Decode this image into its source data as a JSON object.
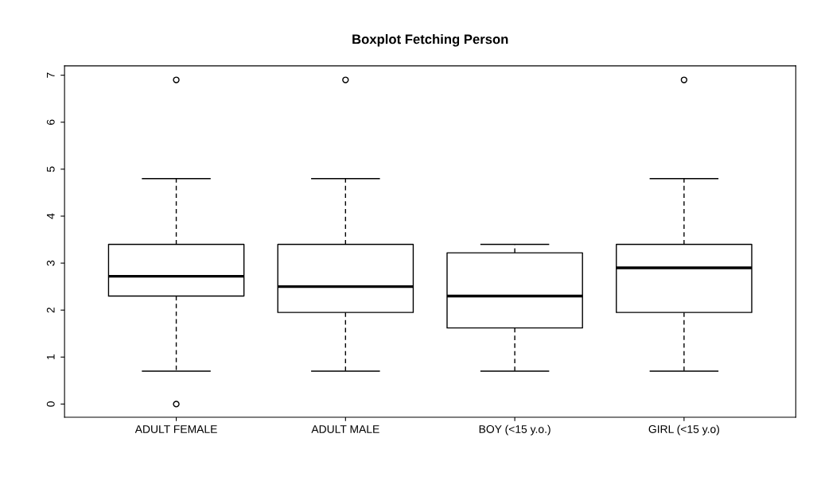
{
  "chart_data": {
    "type": "box",
    "title": "Boxplot Fetching Person",
    "categories": [
      "ADULT FEMALE",
      "ADULT MALE",
      "BOY (<15 y.o.)",
      "GIRL (<15 y.o)"
    ],
    "boxes": [
      {
        "low": 0.7,
        "q1": 2.3,
        "median": 2.72,
        "q3": 3.4,
        "high": 4.8,
        "outliers": [
          6.9,
          0
        ]
      },
      {
        "low": 0.7,
        "q1": 1.95,
        "median": 2.5,
        "q3": 3.4,
        "high": 4.8,
        "outliers": [
          6.9
        ]
      },
      {
        "low": 0.7,
        "q1": 1.62,
        "median": 2.3,
        "q3": 3.22,
        "high": 3.4
      },
      {
        "low": 0.7,
        "q1": 1.95,
        "median": 2.9,
        "q3": 3.4,
        "high": 4.8,
        "outliers": [
          6.9
        ]
      }
    ],
    "ylim": [
      -0.28,
      7.2
    ],
    "yticks": [
      0,
      1,
      2,
      3,
      4,
      5,
      6,
      7
    ],
    "grid": false
  }
}
